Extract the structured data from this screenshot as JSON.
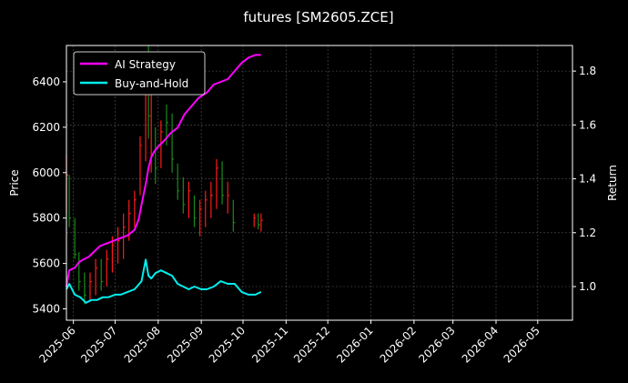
{
  "chart_data": {
    "type": "line",
    "title": "futures [SM2605.ZCE]",
    "ylabel": "Price",
    "y2label": "Return",
    "ylim": [
      5350,
      6560
    ],
    "y2lim": [
      0.875,
      1.895
    ],
    "xlim": [
      "2025-05-27",
      "2026-05-26"
    ],
    "grid": true,
    "legend_position": "top-left",
    "background": "#000000",
    "colors": {
      "up": "#ff1a1a",
      "down": "#1a8c1a",
      "ai": "#ff00ff",
      "bh": "#00eeee",
      "grid": "#555555",
      "frame": "#ffffff"
    },
    "x_ticks": [
      "2025-06",
      "2025-07",
      "2025-08",
      "2025-09",
      "2025-10",
      "2025-11",
      "2025-12",
      "2026-01",
      "2026-02",
      "2026-03",
      "2026-04",
      "2026-05"
    ],
    "y_ticks": [
      5400,
      5600,
      5800,
      6000,
      6200,
      6400
    ],
    "y2_ticks": [
      1.0,
      1.2,
      1.4,
      1.6,
      1.8
    ],
    "series": [
      {
        "name": "AI Strategy",
        "axis": "right",
        "x": [
          "2025-05-27",
          "2025-05-29",
          "2025-06-02",
          "2025-06-05",
          "2025-06-08",
          "2025-06-12",
          "2025-06-16",
          "2025-06-20",
          "2025-06-25",
          "2025-06-30",
          "2025-07-05",
          "2025-07-10",
          "2025-07-15",
          "2025-07-18",
          "2025-07-21",
          "2025-07-23",
          "2025-07-25",
          "2025-07-27",
          "2025-07-29",
          "2025-08-01",
          "2025-08-05",
          "2025-08-10",
          "2025-08-15",
          "2025-08-20",
          "2025-08-25",
          "2025-08-30",
          "2025-09-05",
          "2025-09-10",
          "2025-09-15",
          "2025-09-20",
          "2025-09-25",
          "2025-09-30",
          "2025-10-05",
          "2025-10-10",
          "2025-10-14"
        ],
        "values": [
          1.0,
          1.06,
          1.07,
          1.09,
          1.1,
          1.11,
          1.13,
          1.15,
          1.16,
          1.17,
          1.18,
          1.19,
          1.21,
          1.25,
          1.33,
          1.38,
          1.44,
          1.48,
          1.5,
          1.52,
          1.54,
          1.57,
          1.59,
          1.64,
          1.67,
          1.7,
          1.72,
          1.75,
          1.76,
          1.77,
          1.8,
          1.83,
          1.85,
          1.86,
          1.86
        ]
      },
      {
        "name": "Buy-and-Hold",
        "axis": "right",
        "x": [
          "2025-05-27",
          "2025-05-29",
          "2025-06-02",
          "2025-06-06",
          "2025-06-10",
          "2025-06-14",
          "2025-06-18",
          "2025-06-22",
          "2025-06-26",
          "2025-07-01",
          "2025-07-05",
          "2025-07-10",
          "2025-07-15",
          "2025-07-20",
          "2025-07-23",
          "2025-07-25",
          "2025-07-27",
          "2025-07-30",
          "2025-08-03",
          "2025-08-07",
          "2025-08-11",
          "2025-08-15",
          "2025-08-19",
          "2025-08-23",
          "2025-08-27",
          "2025-09-01",
          "2025-09-05",
          "2025-09-10",
          "2025-09-15",
          "2025-09-20",
          "2025-09-25",
          "2025-09-30",
          "2025-10-05",
          "2025-10-10",
          "2025-10-14"
        ],
        "values": [
          0.99,
          1.01,
          0.97,
          0.96,
          0.94,
          0.95,
          0.95,
          0.96,
          0.96,
          0.97,
          0.97,
          0.98,
          0.99,
          1.02,
          1.1,
          1.04,
          1.03,
          1.05,
          1.06,
          1.05,
          1.04,
          1.01,
          1.0,
          0.99,
          1.0,
          0.99,
          0.99,
          1.0,
          1.02,
          1.01,
          1.01,
          0.98,
          0.97,
          0.97,
          0.98
        ]
      }
    ],
    "price_bars": [
      {
        "x": "2025-05-27",
        "low": 5820,
        "high": 6080,
        "close": 5990,
        "dir": "up"
      },
      {
        "x": "2025-05-29",
        "low": 5760,
        "high": 5990,
        "close": 5800,
        "dir": "down"
      },
      {
        "x": "2025-06-02",
        "low": 5620,
        "high": 5800,
        "close": 5640,
        "dir": "down"
      },
      {
        "x": "2025-06-05",
        "low": 5480,
        "high": 5650,
        "close": 5520,
        "dir": "down"
      },
      {
        "x": "2025-06-09",
        "low": 5420,
        "high": 5560,
        "close": 5460,
        "dir": "down"
      },
      {
        "x": "2025-06-13",
        "low": 5440,
        "high": 5560,
        "close": 5520,
        "dir": "up"
      },
      {
        "x": "2025-06-17",
        "low": 5460,
        "high": 5620,
        "close": 5580,
        "dir": "up"
      },
      {
        "x": "2025-06-21",
        "low": 5480,
        "high": 5620,
        "close": 5520,
        "dir": "down"
      },
      {
        "x": "2025-06-25",
        "low": 5500,
        "high": 5660,
        "close": 5620,
        "dir": "up"
      },
      {
        "x": "2025-06-29",
        "low": 5560,
        "high": 5720,
        "close": 5680,
        "dir": "up"
      },
      {
        "x": "2025-07-03",
        "low": 5600,
        "high": 5760,
        "close": 5700,
        "dir": "up"
      },
      {
        "x": "2025-07-07",
        "low": 5620,
        "high": 5820,
        "close": 5760,
        "dir": "up"
      },
      {
        "x": "2025-07-11",
        "low": 5700,
        "high": 5880,
        "close": 5820,
        "dir": "up"
      },
      {
        "x": "2025-07-15",
        "low": 5760,
        "high": 5920,
        "close": 5880,
        "dir": "up"
      },
      {
        "x": "2025-07-19",
        "low": 5900,
        "high": 6160,
        "close": 6120,
        "dir": "up"
      },
      {
        "x": "2025-07-23",
        "low": 6050,
        "high": 6480,
        "close": 6420,
        "dir": "up"
      },
      {
        "x": "2025-07-25",
        "low": 6150,
        "high": 6560,
        "close": 6250,
        "dir": "down"
      },
      {
        "x": "2025-07-27",
        "low": 6000,
        "high": 6480,
        "close": 6420,
        "dir": "up"
      },
      {
        "x": "2025-07-30",
        "low": 5950,
        "high": 6200,
        "close": 6020,
        "dir": "down"
      },
      {
        "x": "2025-08-03",
        "low": 6020,
        "high": 6230,
        "close": 6180,
        "dir": "up"
      },
      {
        "x": "2025-08-07",
        "low": 6120,
        "high": 6300,
        "close": 6220,
        "dir": "down"
      },
      {
        "x": "2025-08-11",
        "low": 6000,
        "high": 6260,
        "close": 6060,
        "dir": "down"
      },
      {
        "x": "2025-08-15",
        "low": 5880,
        "high": 6040,
        "close": 5920,
        "dir": "down"
      },
      {
        "x": "2025-08-19",
        "low": 5820,
        "high": 5980,
        "close": 5860,
        "dir": "down"
      },
      {
        "x": "2025-08-23",
        "low": 5800,
        "high": 5960,
        "close": 5920,
        "dir": "up"
      },
      {
        "x": "2025-08-27",
        "low": 5760,
        "high": 5900,
        "close": 5800,
        "dir": "down"
      },
      {
        "x": "2025-08-31",
        "low": 5720,
        "high": 5880,
        "close": 5840,
        "dir": "up"
      },
      {
        "x": "2025-09-04",
        "low": 5760,
        "high": 5920,
        "close": 5880,
        "dir": "up"
      },
      {
        "x": "2025-09-08",
        "low": 5800,
        "high": 5960,
        "close": 5900,
        "dir": "up"
      },
      {
        "x": "2025-09-12",
        "low": 5840,
        "high": 6060,
        "close": 6020,
        "dir": "up"
      },
      {
        "x": "2025-09-16",
        "low": 5860,
        "high": 6050,
        "close": 5900,
        "dir": "down"
      },
      {
        "x": "2025-09-20",
        "low": 5820,
        "high": 5960,
        "close": 5900,
        "dir": "up"
      },
      {
        "x": "2025-09-24",
        "low": 5740,
        "high": 5880,
        "close": 5780,
        "dir": "down"
      },
      {
        "x": "2025-10-09",
        "low": 5760,
        "high": 5820,
        "close": 5800,
        "dir": "up"
      },
      {
        "x": "2025-10-12",
        "low": 5750,
        "high": 5820,
        "close": 5770,
        "dir": "down"
      },
      {
        "x": "2025-10-14",
        "low": 5740,
        "high": 5820,
        "close": 5790,
        "dir": "up"
      }
    ]
  }
}
